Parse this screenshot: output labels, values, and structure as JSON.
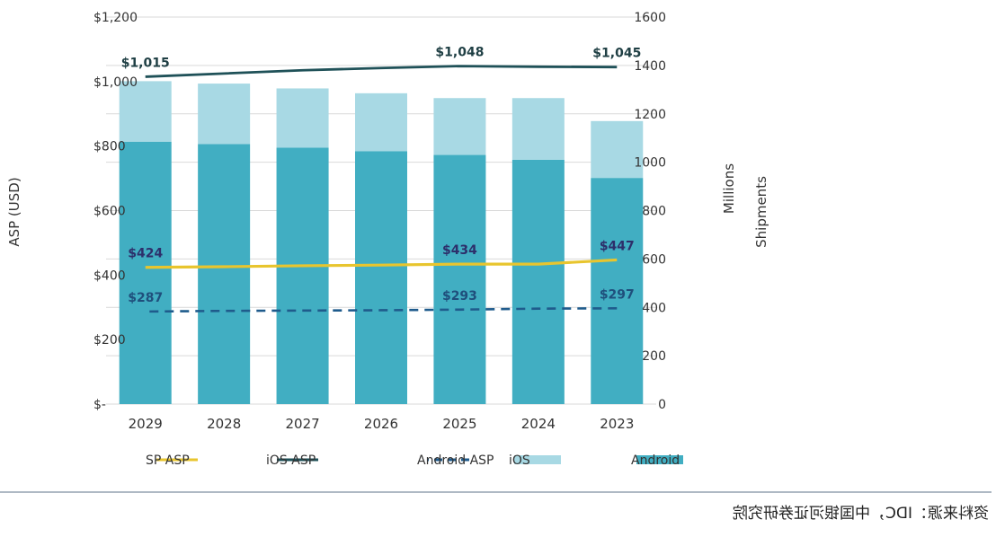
{
  "chart_data": {
    "type": "bar",
    "categories": [
      "2023",
      "2024",
      "2025",
      "2026",
      "2027",
      "2028",
      "2029"
    ],
    "series": [
      {
        "name": "Android",
        "kind": "stacked-bar",
        "axis": "right",
        "values": [
          935,
          1010,
          1030,
          1045,
          1060,
          1075,
          1085
        ]
      },
      {
        "name": "iOS",
        "kind": "stacked-bar",
        "axis": "right",
        "values": [
          235,
          255,
          235,
          240,
          245,
          250,
          250
        ]
      },
      {
        "name": "Android ASP",
        "kind": "line-dashed",
        "axis": "left",
        "values": [
          297,
          296,
          293,
          291,
          290,
          289,
          287
        ]
      },
      {
        "name": "iOS ASP",
        "kind": "line",
        "axis": "left",
        "values": [
          1045,
          1046,
          1048,
          1042,
          1035,
          1025,
          1015
        ]
      },
      {
        "name": "SP ASP",
        "kind": "line",
        "axis": "left",
        "values": [
          447,
          434,
          434,
          431,
          429,
          426,
          424
        ]
      }
    ],
    "left_axis": {
      "label": "ASP (USD)",
      "ticks": [
        "$-",
        "$200",
        "$400",
        "$600",
        "$800",
        "$1,000",
        "$1,200"
      ],
      "ylim": [
        0,
        1200
      ]
    },
    "right_axis": {
      "label": "Shipments",
      "unit": "Millions",
      "ticks": [
        "0",
        "200",
        "400",
        "600",
        "800",
        "1000",
        "1200",
        "1400",
        "1600"
      ],
      "ylim": [
        0,
        1600
      ]
    },
    "data_labels": [
      {
        "series": "iOS ASP",
        "category": "2023",
        "text": "$1,045"
      },
      {
        "series": "iOS ASP",
        "category": "2025",
        "text": "$1,048"
      },
      {
        "series": "iOS ASP",
        "category": "2029",
        "text": "$1,015"
      },
      {
        "series": "SP ASP",
        "category": "2023",
        "text": "$447"
      },
      {
        "series": "SP ASP",
        "category": "2025",
        "text": "$434"
      },
      {
        "series": "SP ASP",
        "category": "2029",
        "text": "$424"
      },
      {
        "series": "Android ASP",
        "category": "2023",
        "text": "$297"
      },
      {
        "series": "Android ASP",
        "category": "2025",
        "text": "$293"
      },
      {
        "series": "Android ASP",
        "category": "2029",
        "text": "$287"
      }
    ],
    "grid": "horizontal",
    "legend_position": "bottom",
    "mirrored": true
  },
  "source_note": "资料来源：IDC，中国银河证券研究院",
  "colors": {
    "android": "#41aec2",
    "ios": "#a8d9e4",
    "ios_asp": "#1f5158",
    "sp_asp": "#e8c52e",
    "android_asp": "#1f5b8c",
    "axis_text": "#333333",
    "grid": "#d9d9d9",
    "rule": "#7f8fa0"
  }
}
